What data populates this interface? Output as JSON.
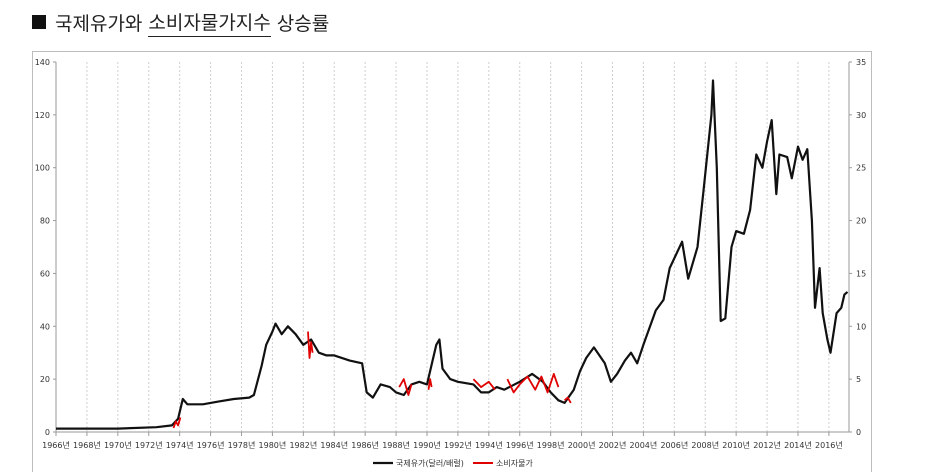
{
  "heading": {
    "prefix": "국제유가와",
    "underlined": "소비자물가지수",
    "suffix": "상승률"
  },
  "colors": {
    "oil": "#111111",
    "cpi": "#e00000",
    "grid": "#cfcfcf",
    "axis": "#9a9a9a"
  },
  "chart_data": {
    "type": "line",
    "title": "",
    "x_ticks": [
      "1966년",
      "1968년",
      "1970년",
      "1972년",
      "1974년",
      "1976년",
      "1978년",
      "1980년",
      "1982년",
      "1984년",
      "1986년",
      "1988년",
      "1990년",
      "1992년",
      "1994년",
      "1996년",
      "1998년",
      "2000년",
      "2002년",
      "2004년",
      "2006년",
      "2008년",
      "2010년",
      "2012년",
      "2014년",
      "2016년"
    ],
    "xlim": [
      1966,
      2017.3
    ],
    "ylim_left": [
      0,
      140
    ],
    "yticks_left": [
      "0",
      "20",
      "40",
      "60",
      "80",
      "100",
      "120",
      "140"
    ],
    "ylim_right": [
      0,
      35
    ],
    "yticks_right": [
      "0",
      "5",
      "10",
      "15",
      "20",
      "25",
      "30",
      "35"
    ],
    "grid": "vertical dashed",
    "legend_position": "bottom-center",
    "series": [
      {
        "name": "국제유가(달러/배럴)",
        "axis": "left",
        "points": [
          [
            1966,
            1.3
          ],
          [
            1970,
            1.3
          ],
          [
            1972.5,
            1.8
          ],
          [
            1973.5,
            2.5
          ],
          [
            1973.9,
            5
          ],
          [
            1974.2,
            12.5
          ],
          [
            1974.5,
            10.5
          ],
          [
            1975.5,
            10.5
          ],
          [
            1976.5,
            11.5
          ],
          [
            1977.5,
            12.5
          ],
          [
            1978.5,
            13
          ],
          [
            1978.8,
            14
          ],
          [
            1979.3,
            25
          ],
          [
            1979.6,
            33
          ],
          [
            1980,
            38
          ],
          [
            1980.2,
            41
          ],
          [
            1980.6,
            37
          ],
          [
            1981,
            40
          ],
          [
            1981.5,
            37
          ],
          [
            1982,
            33
          ],
          [
            1982.5,
            35
          ],
          [
            1983,
            30
          ],
          [
            1983.5,
            29
          ],
          [
            1984,
            29
          ],
          [
            1985,
            27
          ],
          [
            1985.8,
            26
          ],
          [
            1986.1,
            15
          ],
          [
            1986.5,
            13
          ],
          [
            1987,
            18
          ],
          [
            1987.6,
            17
          ],
          [
            1988,
            15
          ],
          [
            1988.5,
            14
          ],
          [
            1989,
            18
          ],
          [
            1989.5,
            19
          ],
          [
            1990,
            18
          ],
          [
            1990.6,
            33
          ],
          [
            1990.8,
            35
          ],
          [
            1991,
            24
          ],
          [
            1991.5,
            20
          ],
          [
            1992,
            19
          ],
          [
            1993,
            18
          ],
          [
            1993.5,
            15
          ],
          [
            1994,
            15
          ],
          [
            1994.5,
            17
          ],
          [
            1995,
            16
          ],
          [
            1996,
            19
          ],
          [
            1996.8,
            22
          ],
          [
            1997.5,
            19
          ],
          [
            1998,
            15
          ],
          [
            1998.5,
            12
          ],
          [
            1998.9,
            11
          ],
          [
            1999.5,
            16
          ],
          [
            1999.9,
            23
          ],
          [
            2000.3,
            28
          ],
          [
            2000.8,
            32
          ],
          [
            2001.5,
            26
          ],
          [
            2001.9,
            19
          ],
          [
            2002.3,
            22
          ],
          [
            2002.8,
            27
          ],
          [
            2003.2,
            30
          ],
          [
            2003.6,
            26
          ],
          [
            2004,
            33
          ],
          [
            2004.8,
            46
          ],
          [
            2005.3,
            50
          ],
          [
            2005.7,
            62
          ],
          [
            2006.5,
            72
          ],
          [
            2006.9,
            58
          ],
          [
            2007.5,
            70
          ],
          [
            2007.9,
            92
          ],
          [
            2008.4,
            120
          ],
          [
            2008.5,
            133
          ],
          [
            2008.75,
            100
          ],
          [
            2009,
            42
          ],
          [
            2009.3,
            43
          ],
          [
            2009.7,
            70
          ],
          [
            2010,
            76
          ],
          [
            2010.5,
            75
          ],
          [
            2010.9,
            84
          ],
          [
            2011.3,
            105
          ],
          [
            2011.7,
            100
          ],
          [
            2012,
            110
          ],
          [
            2012.3,
            118
          ],
          [
            2012.6,
            90
          ],
          [
            2012.8,
            105
          ],
          [
            2013.3,
            104
          ],
          [
            2013.6,
            96
          ],
          [
            2014,
            108
          ],
          [
            2014.3,
            103
          ],
          [
            2014.6,
            107
          ],
          [
            2014.9,
            80
          ],
          [
            2015.1,
            47
          ],
          [
            2015.4,
            62
          ],
          [
            2015.6,
            45
          ],
          [
            2015.9,
            35
          ],
          [
            2016.1,
            30
          ],
          [
            2016.5,
            45
          ],
          [
            2016.8,
            47
          ],
          [
            2017,
            52
          ],
          [
            2017.2,
            53
          ]
        ]
      },
      {
        "name": "소비자물가",
        "axis": "left",
        "segments": [
          [
            [
              1973.6,
              1.5
            ],
            [
              1973.75,
              4
            ],
            [
              1973.9,
              2.5
            ],
            [
              1974.05,
              5.5
            ]
          ],
          [
            [
              1982.3,
              38
            ],
            [
              1982.4,
              28
            ],
            [
              1982.5,
              34
            ],
            [
              1982.6,
              30
            ]
          ],
          [
            [
              1988.2,
              17
            ],
            [
              1988.5,
              20
            ],
            [
              1988.8,
              14
            ],
            [
              1989,
              18
            ]
          ],
          [
            [
              1990.1,
              16
            ],
            [
              1990.2,
              20
            ],
            [
              1990.3,
              17
            ]
          ],
          [
            [
              1993,
              20
            ],
            [
              1993.5,
              17
            ],
            [
              1994,
              19
            ],
            [
              1994.4,
              16
            ]
          ],
          [
            [
              1995.2,
              20
            ],
            [
              1995.6,
              15
            ],
            [
              1996,
              18
            ],
            [
              1996.5,
              21
            ],
            [
              1997,
              16
            ],
            [
              1997.4,
              21
            ],
            [
              1997.8,
              15
            ],
            [
              1998.2,
              22
            ],
            [
              1998.5,
              17
            ]
          ],
          [
            [
              1998.9,
              12
            ],
            [
              1999.1,
              13
            ],
            [
              1999.3,
              11
            ]
          ]
        ]
      }
    ]
  }
}
